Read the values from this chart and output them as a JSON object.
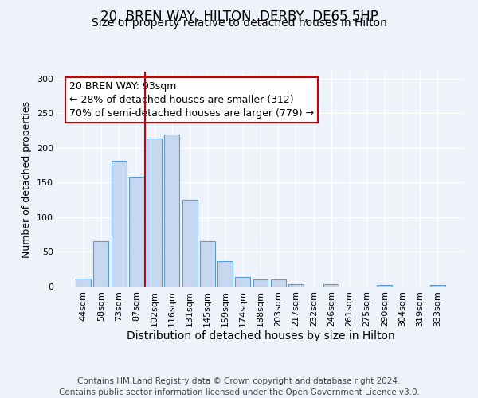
{
  "title": "20, BREN WAY, HILTON, DERBY, DE65 5HP",
  "subtitle": "Size of property relative to detached houses in Hilton",
  "xlabel": "Distribution of detached houses by size in Hilton",
  "ylabel": "Number of detached properties",
  "bar_labels": [
    "44sqm",
    "58sqm",
    "73sqm",
    "87sqm",
    "102sqm",
    "116sqm",
    "131sqm",
    "145sqm",
    "159sqm",
    "174sqm",
    "188sqm",
    "203sqm",
    "217sqm",
    "232sqm",
    "246sqm",
    "261sqm",
    "275sqm",
    "290sqm",
    "304sqm",
    "319sqm",
    "333sqm"
  ],
  "bar_values": [
    12,
    65,
    181,
    158,
    214,
    219,
    125,
    65,
    37,
    14,
    10,
    10,
    4,
    0,
    3,
    0,
    0,
    2,
    0,
    0,
    2
  ],
  "bar_color": "#c5d8f0",
  "bar_edge_color": "#5b9bd5",
  "ylim": [
    0,
    310
  ],
  "yticks": [
    0,
    50,
    100,
    150,
    200,
    250,
    300
  ],
  "annotation_box_text": "20 BREN WAY: 93sqm\n← 28% of detached houses are smaller (312)\n70% of semi-detached houses are larger (779) →",
  "annotation_box_color": "#ffffff",
  "annotation_box_edgecolor": "#cc0000",
  "annotation_line_color": "#cc0000",
  "footer_line1": "Contains HM Land Registry data © Crown copyright and database right 2024.",
  "footer_line2": "Contains public sector information licensed under the Open Government Licence v3.0.",
  "background_color": "#eef2fa",
  "title_fontsize": 12,
  "subtitle_fontsize": 10,
  "xlabel_fontsize": 10,
  "ylabel_fontsize": 9,
  "tick_fontsize": 8,
  "annotation_fontsize": 9,
  "footer_fontsize": 7.5
}
